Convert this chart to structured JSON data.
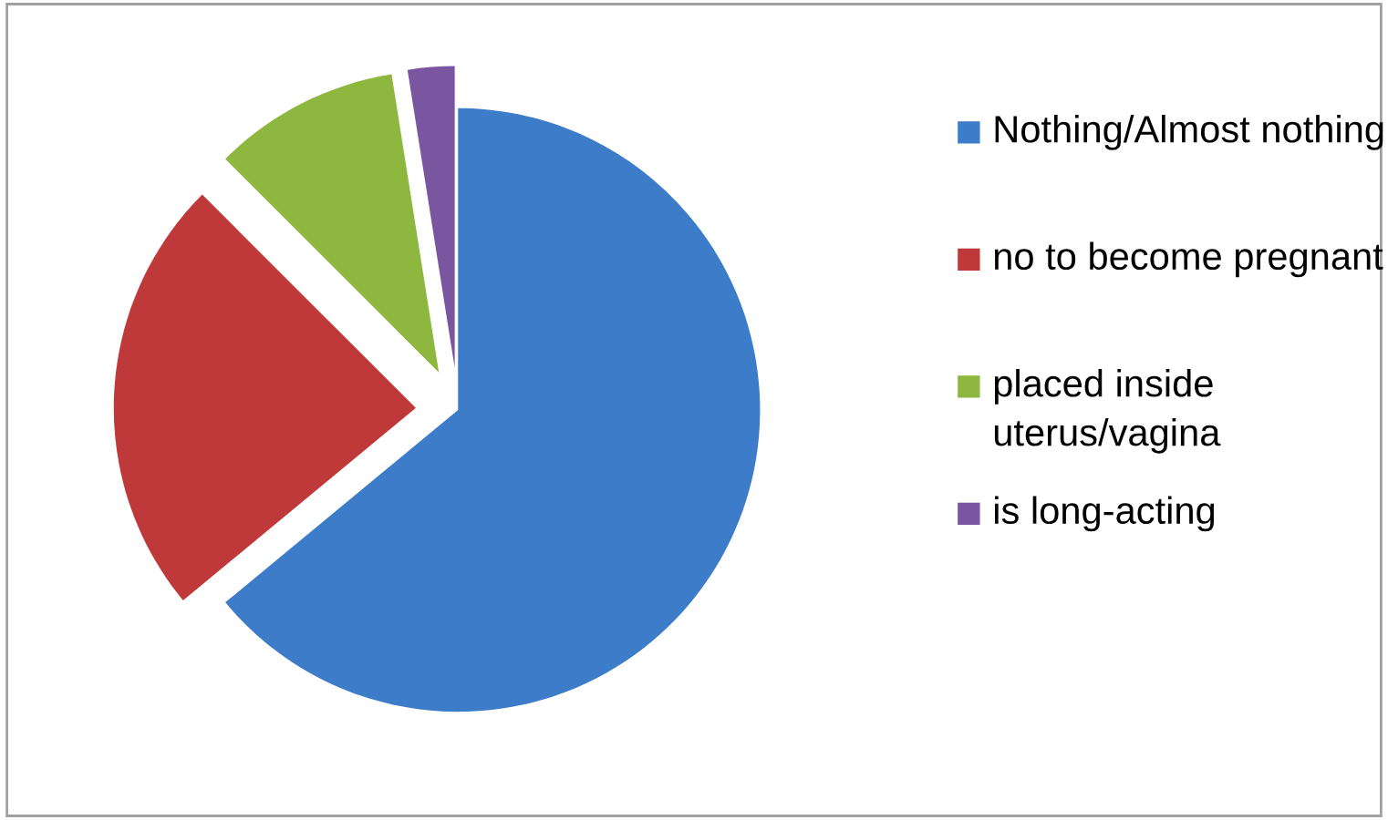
{
  "chart_data": {
    "type": "pie",
    "categories": [
      "Nothing/Almost nothing",
      "no to become pregnant",
      "placed inside uterus/vagina",
      "is long-acting"
    ],
    "values": [
      64,
      23.5,
      10,
      2.5
    ],
    "colors": [
      "#3d7cc9",
      "#c0393a",
      "#8db73e",
      "#7a56a0"
    ],
    "legend": "right"
  }
}
